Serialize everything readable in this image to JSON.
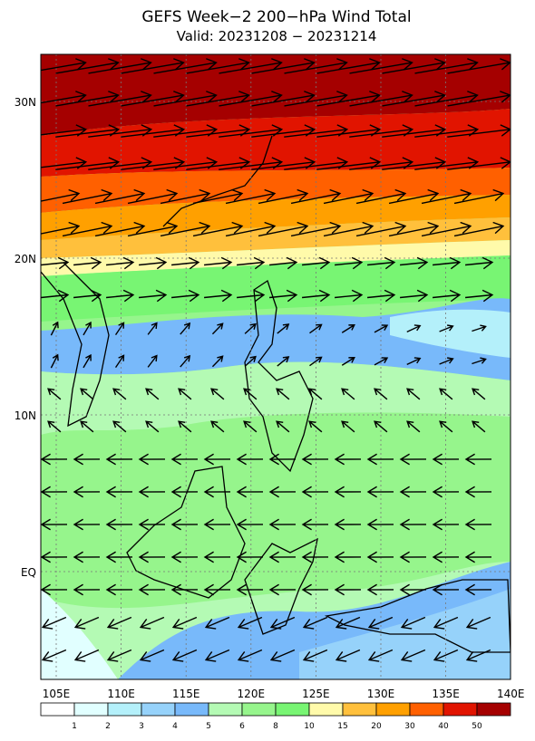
{
  "header": {
    "title": "GEFS Week−2 200−hPa Wind Total",
    "subtitle": "Valid: 20231208 − 20231214"
  },
  "lon_labels": [
    "105E",
    "110E",
    "115E",
    "120E",
    "125E",
    "130E",
    "135E",
    "140E"
  ],
  "lat_labels": [
    "30N",
    "20N",
    "10N",
    "EQ"
  ],
  "colorbar": {
    "labels": [
      "1",
      "2",
      "3",
      "4",
      "5",
      "6",
      "8",
      "10",
      "15",
      "20",
      "30",
      "40",
      "50"
    ],
    "colors": [
      "#ffffff",
      "#e1ffff",
      "#b4f0fa",
      "#96d2fa",
      "#78b9fa",
      "#b4fab4",
      "#96f58c",
      "#78f573",
      "#fffaaa",
      "#ffc03c",
      "#ffa000",
      "#ff6000",
      "#e11400",
      "#a50000"
    ]
  }
}
